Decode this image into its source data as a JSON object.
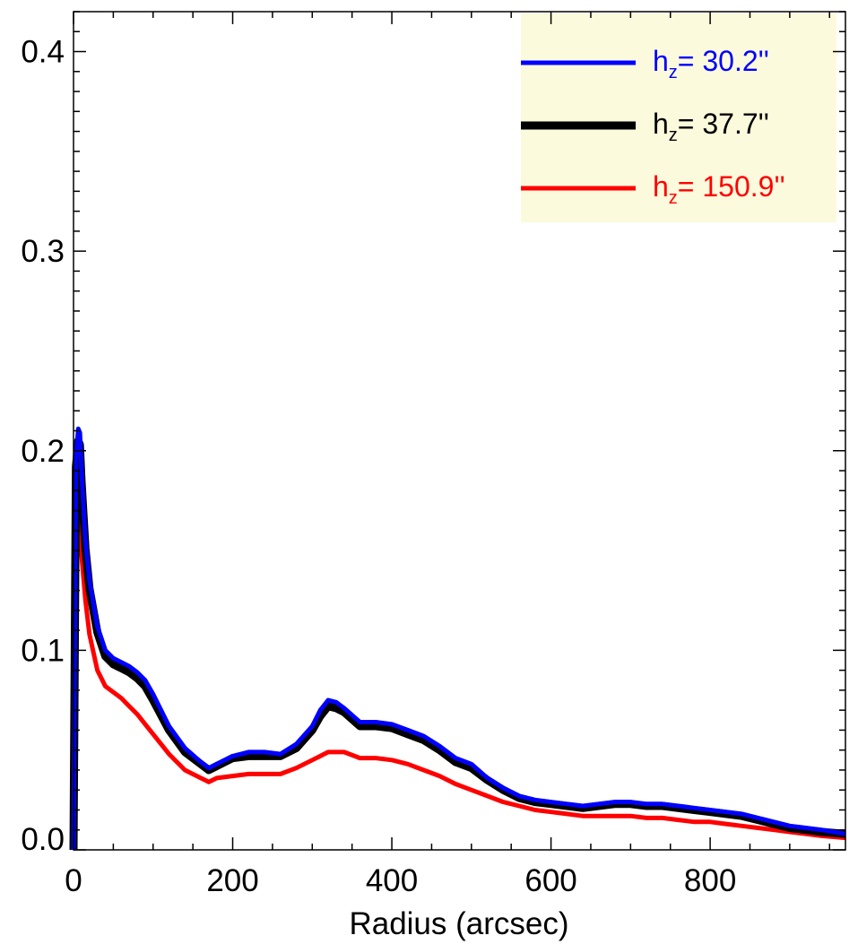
{
  "chart_data": {
    "type": "line",
    "title": "",
    "xlabel": "Radius (arcsec)",
    "ylabel": "",
    "xlim": [
      0,
      970
    ],
    "ylim": [
      0,
      0.42
    ],
    "xticks": [
      0,
      200,
      400,
      600,
      800
    ],
    "xtick_labels": [
      "0",
      "200",
      "400",
      "600",
      "800"
    ],
    "yticks": [
      0.0,
      0.1,
      0.2,
      0.3,
      0.4
    ],
    "ytick_labels": [
      "0.0",
      "0.1",
      "0.2",
      "0.3",
      "0.4"
    ],
    "grid": false,
    "legend_position": "top-right",
    "legend_background": "#fcfadc",
    "series": [
      {
        "name": "h_z= 30.2''",
        "legend_prefix": "h",
        "legend_sub": "z",
        "legend_value": "=  30.2''",
        "color": "#0000ff",
        "linewidth": 5,
        "x": [
          0,
          3,
          6,
          8,
          10,
          15,
          20,
          30,
          40,
          50,
          60,
          70,
          80,
          90,
          100,
          120,
          140,
          160,
          170,
          180,
          200,
          220,
          240,
          260,
          280,
          300,
          310,
          320,
          330,
          340,
          360,
          380,
          400,
          420,
          440,
          460,
          480,
          500,
          520,
          540,
          560,
          580,
          600,
          620,
          640,
          660,
          680,
          700,
          720,
          740,
          760,
          780,
          800,
          820,
          840,
          860,
          880,
          900,
          920,
          940,
          970
        ],
        "y": [
          0.0,
          0.196,
          0.211,
          0.209,
          0.19,
          0.155,
          0.135,
          0.112,
          0.1,
          0.096,
          0.094,
          0.092,
          0.089,
          0.085,
          0.078,
          0.062,
          0.051,
          0.044,
          0.041,
          0.043,
          0.047,
          0.049,
          0.049,
          0.048,
          0.053,
          0.062,
          0.07,
          0.075,
          0.074,
          0.071,
          0.064,
          0.064,
          0.063,
          0.06,
          0.057,
          0.052,
          0.046,
          0.043,
          0.036,
          0.031,
          0.027,
          0.025,
          0.024,
          0.023,
          0.022,
          0.023,
          0.024,
          0.024,
          0.023,
          0.023,
          0.022,
          0.021,
          0.02,
          0.019,
          0.018,
          0.016,
          0.014,
          0.012,
          0.011,
          0.01,
          0.008
        ]
      },
      {
        "name": "h_z= 37.7''",
        "legend_prefix": "h",
        "legend_sub": "z",
        "legend_value": "=  37.7''",
        "color": "#000000",
        "linewidth": 9,
        "x": [
          0,
          3,
          6,
          8,
          10,
          15,
          20,
          30,
          40,
          50,
          60,
          70,
          80,
          90,
          100,
          120,
          140,
          160,
          170,
          180,
          200,
          220,
          240,
          260,
          280,
          300,
          310,
          320,
          330,
          340,
          360,
          380,
          400,
          420,
          440,
          460,
          480,
          500,
          520,
          540,
          560,
          580,
          600,
          620,
          640,
          660,
          680,
          700,
          720,
          740,
          760,
          780,
          800,
          820,
          840,
          860,
          880,
          900,
          920,
          940,
          970
        ],
        "y": [
          0.0,
          0.192,
          0.205,
          0.203,
          0.185,
          0.151,
          0.131,
          0.109,
          0.097,
          0.093,
          0.091,
          0.089,
          0.086,
          0.082,
          0.075,
          0.06,
          0.049,
          0.043,
          0.04,
          0.042,
          0.046,
          0.047,
          0.047,
          0.047,
          0.051,
          0.06,
          0.067,
          0.072,
          0.071,
          0.069,
          0.062,
          0.062,
          0.061,
          0.058,
          0.055,
          0.05,
          0.044,
          0.041,
          0.035,
          0.03,
          0.026,
          0.024,
          0.023,
          0.022,
          0.021,
          0.022,
          0.023,
          0.023,
          0.022,
          0.022,
          0.021,
          0.02,
          0.019,
          0.018,
          0.017,
          0.015,
          0.013,
          0.011,
          0.01,
          0.009,
          0.008
        ]
      },
      {
        "name": "h_z= 150.9''",
        "legend_prefix": "h",
        "legend_sub": "z",
        "legend_value": "= 150.9''",
        "color": "#ff0000",
        "linewidth": 5,
        "x": [
          0,
          3,
          6,
          8,
          10,
          15,
          20,
          30,
          40,
          50,
          60,
          70,
          80,
          90,
          100,
          120,
          140,
          160,
          170,
          180,
          200,
          220,
          240,
          260,
          280,
          300,
          310,
          320,
          330,
          340,
          360,
          380,
          400,
          420,
          440,
          460,
          480,
          500,
          520,
          540,
          560,
          580,
          600,
          620,
          640,
          660,
          680,
          700,
          720,
          740,
          760,
          780,
          800,
          820,
          840,
          860,
          880,
          900,
          920,
          940,
          970
        ],
        "y": [
          0.0,
          0.155,
          0.17,
          0.163,
          0.148,
          0.125,
          0.108,
          0.09,
          0.082,
          0.079,
          0.076,
          0.072,
          0.068,
          0.063,
          0.058,
          0.048,
          0.04,
          0.036,
          0.034,
          0.036,
          0.037,
          0.038,
          0.038,
          0.038,
          0.041,
          0.045,
          0.047,
          0.049,
          0.049,
          0.049,
          0.046,
          0.046,
          0.045,
          0.043,
          0.04,
          0.037,
          0.033,
          0.03,
          0.027,
          0.024,
          0.022,
          0.02,
          0.019,
          0.018,
          0.017,
          0.017,
          0.017,
          0.017,
          0.016,
          0.016,
          0.015,
          0.014,
          0.014,
          0.013,
          0.012,
          0.011,
          0.01,
          0.009,
          0.008,
          0.007,
          0.006
        ]
      }
    ]
  }
}
